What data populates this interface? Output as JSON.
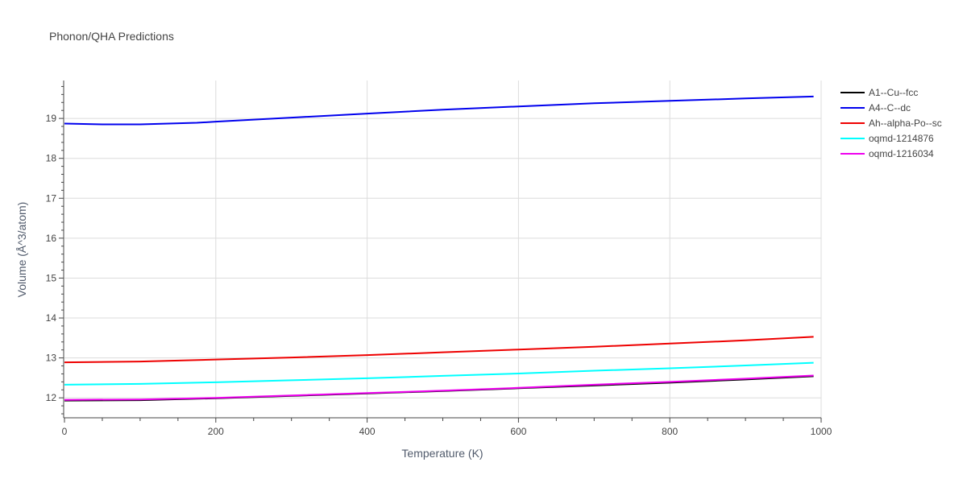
{
  "chart_data": {
    "type": "line",
    "title": "Phonon/QHA Predictions",
    "xlabel": "Temperature (K)",
    "ylabel": "Volume (Å^3/atom)",
    "xlim": [
      0,
      1000
    ],
    "ylim": [
      11.5,
      19.95
    ],
    "x_ticks": [
      0,
      200,
      400,
      600,
      800,
      1000
    ],
    "y_ticks": [
      12,
      13,
      14,
      15,
      16,
      17,
      18,
      19
    ],
    "grid": true,
    "legend_position": "right",
    "series": [
      {
        "name": "A1--Cu--fcc",
        "color": "#000000",
        "x": [
          0,
          100,
          200,
          300,
          400,
          500,
          600,
          700,
          800,
          900,
          990
        ],
        "y": [
          11.93,
          11.94,
          11.99,
          12.05,
          12.11,
          12.17,
          12.24,
          12.31,
          12.38,
          12.46,
          12.54
        ]
      },
      {
        "name": "A4--C--dc",
        "color": "#0000ee",
        "x": [
          0,
          50,
          100,
          175,
          200,
          300,
          400,
          500,
          600,
          700,
          800,
          900,
          990
        ],
        "y": [
          18.87,
          18.85,
          18.85,
          18.89,
          18.92,
          19.02,
          19.12,
          19.22,
          19.3,
          19.38,
          19.44,
          19.5,
          19.55
        ]
      },
      {
        "name": "Ah--alpha-Po--sc",
        "color": "#ee0000",
        "x": [
          0,
          100,
          200,
          300,
          400,
          500,
          600,
          700,
          800,
          900,
          990
        ],
        "y": [
          12.89,
          12.91,
          12.96,
          13.01,
          13.07,
          13.14,
          13.21,
          13.28,
          13.36,
          13.44,
          13.53
        ]
      },
      {
        "name": "oqmd-1214876",
        "color": "#00ffff",
        "x": [
          0,
          100,
          200,
          300,
          400,
          500,
          600,
          700,
          800,
          900,
          990
        ],
        "y": [
          12.33,
          12.35,
          12.39,
          12.44,
          12.49,
          12.55,
          12.61,
          12.68,
          12.74,
          12.81,
          12.88
        ]
      },
      {
        "name": "oqmd-1216034",
        "color": "#ee00ee",
        "x": [
          0,
          100,
          200,
          300,
          400,
          500,
          600,
          700,
          800,
          900,
          990
        ],
        "y": [
          11.95,
          11.96,
          12.0,
          12.06,
          12.12,
          12.18,
          12.25,
          12.33,
          12.4,
          12.48,
          12.56
        ]
      }
    ]
  }
}
